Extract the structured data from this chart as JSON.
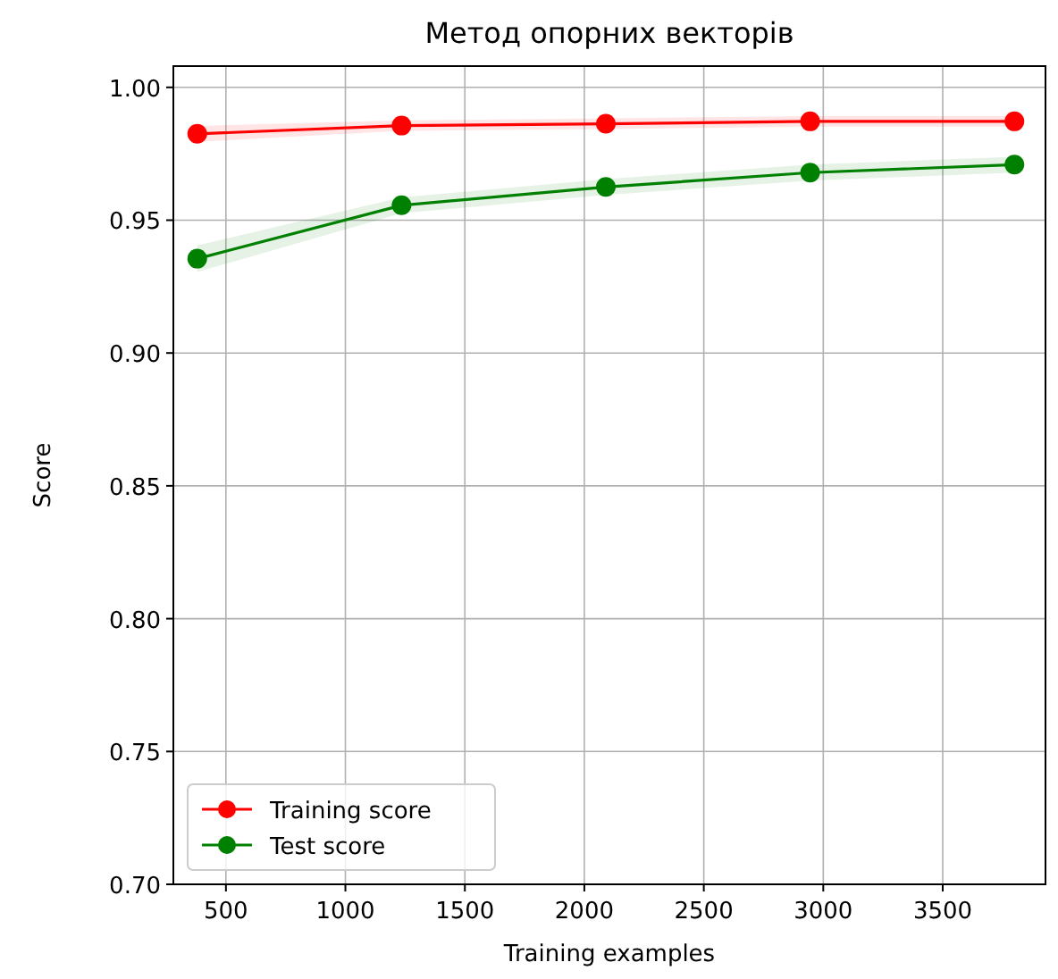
{
  "chart_data": {
    "type": "line",
    "title": "Метод опорних векторів",
    "xlabel": "Training examples",
    "ylabel": "Score",
    "x": [
      380,
      1235,
      2090,
      2945,
      3800
    ],
    "series": [
      {
        "name": "Training score",
        "color": "#ff0000",
        "values": [
          0.9825,
          0.9856,
          0.9863,
          0.9872,
          0.9872
        ],
        "lower": [
          0.9795,
          0.9836,
          0.9843,
          0.9852,
          0.9852
        ],
        "upper": [
          0.9855,
          0.9876,
          0.9883,
          0.9892,
          0.9892
        ]
      },
      {
        "name": "Test score",
        "color": "#008000",
        "values": [
          0.9355,
          0.9556,
          0.9625,
          0.9679,
          0.9709
        ],
        "lower": [
          0.9305,
          0.9526,
          0.9595,
          0.9649,
          0.9679
        ],
        "upper": [
          0.9405,
          0.9586,
          0.9655,
          0.9709,
          0.9739
        ]
      }
    ],
    "xlim": [
      280,
      3930
    ],
    "xticks": [
      500,
      1000,
      1500,
      2000,
      2500,
      3000,
      3500
    ],
    "ylim": [
      0.7,
      1.008
    ],
    "yticks": [
      {
        "value": 0.7,
        "label": "0.70"
      },
      {
        "value": 0.75,
        "label": "0.75"
      },
      {
        "value": 0.8,
        "label": "0.80"
      },
      {
        "value": 0.85,
        "label": "0.85"
      },
      {
        "value": 0.9,
        "label": "0.90"
      },
      {
        "value": 0.95,
        "label": "0.95"
      },
      {
        "value": 1.0,
        "label": "1.00"
      }
    ],
    "grid": true,
    "legend": "bottom left",
    "marker": "circle",
    "line_style": "solid"
  }
}
